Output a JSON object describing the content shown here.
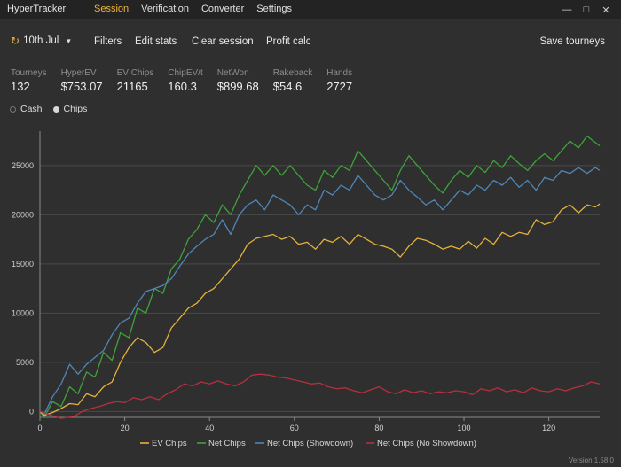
{
  "app": {
    "title": "HyperTracker",
    "version": "Version 1.58.0"
  },
  "menu": [
    {
      "label": "Session",
      "active": true
    },
    {
      "label": "Verification",
      "active": false
    },
    {
      "label": "Converter",
      "active": false
    },
    {
      "label": "Settings",
      "active": false
    }
  ],
  "toolbar": {
    "date": "10th Jul",
    "filters": "Filters",
    "edit_stats": "Edit stats",
    "clear_session": "Clear session",
    "profit_calc": "Profit calc",
    "save_tourneys": "Save tourneys"
  },
  "stats": [
    {
      "label": "Tourneys",
      "value": "132"
    },
    {
      "label": "HyperEV",
      "value": "$753.07"
    },
    {
      "label": "EV Chips",
      "value": "21165"
    },
    {
      "label": "ChipEV/t",
      "value": "160.3"
    },
    {
      "label": "NetWon",
      "value": "$899.68"
    },
    {
      "label": "Rakeback",
      "value": "$54.6"
    },
    {
      "label": "Hands",
      "value": "2727"
    }
  ],
  "mode": {
    "cash": "Cash",
    "chips": "Chips",
    "selected": "chips"
  },
  "chart_data": {
    "type": "line",
    "title": "",
    "xlabel": "",
    "ylabel": "",
    "xlim": [
      0,
      132
    ],
    "ylim": [
      -600,
      28500
    ],
    "xticks": [
      0,
      20,
      40,
      60,
      80,
      100,
      120
    ],
    "yticks": [
      0,
      5000,
      10000,
      15000,
      20000,
      25000
    ],
    "grid": "horizontal",
    "legend": "bottom",
    "series": [
      {
        "name": "Net Chips",
        "color": "#3fa23a",
        "points": [
          [
            0,
            0
          ],
          [
            1,
            -600
          ],
          [
            3,
            1000
          ],
          [
            5,
            500
          ],
          [
            7,
            2500
          ],
          [
            9,
            1800
          ],
          [
            11,
            4000
          ],
          [
            13,
            3500
          ],
          [
            15,
            6000
          ],
          [
            17,
            5200
          ],
          [
            19,
            8000
          ],
          [
            21,
            7500
          ],
          [
            23,
            10500
          ],
          [
            25,
            10000
          ],
          [
            27,
            12500
          ],
          [
            29,
            12000
          ],
          [
            31,
            14500
          ],
          [
            33,
            15500
          ],
          [
            35,
            17500
          ],
          [
            37,
            18500
          ],
          [
            39,
            20000
          ],
          [
            41,
            19200
          ],
          [
            43,
            21000
          ],
          [
            45,
            20000
          ],
          [
            47,
            22000
          ],
          [
            49,
            23500
          ],
          [
            51,
            25000
          ],
          [
            53,
            24000
          ],
          [
            55,
            25000
          ],
          [
            57,
            24000
          ],
          [
            59,
            25000
          ],
          [
            61,
            24000
          ],
          [
            63,
            23000
          ],
          [
            65,
            22500
          ],
          [
            67,
            24500
          ],
          [
            69,
            23800
          ],
          [
            71,
            25000
          ],
          [
            73,
            24500
          ],
          [
            75,
            26500
          ],
          [
            77,
            25500
          ],
          [
            79,
            24500
          ],
          [
            81,
            23500
          ],
          [
            83,
            22500
          ],
          [
            85,
            24500
          ],
          [
            87,
            26000
          ],
          [
            89,
            25000
          ],
          [
            91,
            24000
          ],
          [
            93,
            23000
          ],
          [
            95,
            22200
          ],
          [
            97,
            23500
          ],
          [
            99,
            24500
          ],
          [
            101,
            23800
          ],
          [
            103,
            25000
          ],
          [
            105,
            24300
          ],
          [
            107,
            25500
          ],
          [
            109,
            24800
          ],
          [
            111,
            26000
          ],
          [
            113,
            25200
          ],
          [
            115,
            24500
          ],
          [
            117,
            25500
          ],
          [
            119,
            26200
          ],
          [
            121,
            25500
          ],
          [
            123,
            26500
          ],
          [
            125,
            27500
          ],
          [
            127,
            26800
          ],
          [
            129,
            28000
          ],
          [
            132,
            27000
          ]
        ]
      },
      {
        "name": "Net Chips (Showdown)",
        "color": "#4f86b7",
        "points": [
          [
            0,
            0
          ],
          [
            1,
            -300
          ],
          [
            3,
            1500
          ],
          [
            5,
            2800
          ],
          [
            7,
            4800
          ],
          [
            9,
            3800
          ],
          [
            11,
            4800
          ],
          [
            13,
            5500
          ],
          [
            15,
            6200
          ],
          [
            17,
            7800
          ],
          [
            19,
            9000
          ],
          [
            21,
            9500
          ],
          [
            23,
            11000
          ],
          [
            25,
            12200
          ],
          [
            27,
            12500
          ],
          [
            29,
            12800
          ],
          [
            31,
            13500
          ],
          [
            33,
            14800
          ],
          [
            35,
            16000
          ],
          [
            37,
            16800
          ],
          [
            39,
            17500
          ],
          [
            41,
            18000
          ],
          [
            43,
            19500
          ],
          [
            45,
            18000
          ],
          [
            47,
            20000
          ],
          [
            49,
            21000
          ],
          [
            51,
            21500
          ],
          [
            53,
            20500
          ],
          [
            55,
            22000
          ],
          [
            57,
            21500
          ],
          [
            59,
            21000
          ],
          [
            61,
            20000
          ],
          [
            63,
            21000
          ],
          [
            65,
            20500
          ],
          [
            67,
            22500
          ],
          [
            69,
            22000
          ],
          [
            71,
            23000
          ],
          [
            73,
            22500
          ],
          [
            75,
            24000
          ],
          [
            77,
            23000
          ],
          [
            79,
            22000
          ],
          [
            81,
            21500
          ],
          [
            83,
            22000
          ],
          [
            85,
            23500
          ],
          [
            87,
            22500
          ],
          [
            89,
            21800
          ],
          [
            91,
            21000
          ],
          [
            93,
            21500
          ],
          [
            95,
            20500
          ],
          [
            97,
            21500
          ],
          [
            99,
            22500
          ],
          [
            101,
            22000
          ],
          [
            103,
            23000
          ],
          [
            105,
            22500
          ],
          [
            107,
            23500
          ],
          [
            109,
            23000
          ],
          [
            111,
            23800
          ],
          [
            113,
            22800
          ],
          [
            115,
            23500
          ],
          [
            117,
            22500
          ],
          [
            119,
            23800
          ],
          [
            121,
            23500
          ],
          [
            123,
            24500
          ],
          [
            125,
            24200
          ],
          [
            127,
            24800
          ],
          [
            129,
            24200
          ],
          [
            131,
            24800
          ],
          [
            132,
            24500
          ]
        ]
      },
      {
        "name": "EV Chips",
        "color": "#e5b13a",
        "points": [
          [
            0,
            0
          ],
          [
            1,
            -400
          ],
          [
            3,
            -100
          ],
          [
            5,
            300
          ],
          [
            7,
            800
          ],
          [
            9,
            700
          ],
          [
            11,
            1800
          ],
          [
            13,
            1500
          ],
          [
            15,
            2500
          ],
          [
            17,
            3000
          ],
          [
            19,
            5000
          ],
          [
            21,
            6500
          ],
          [
            23,
            7500
          ],
          [
            25,
            7000
          ],
          [
            27,
            6000
          ],
          [
            29,
            6500
          ],
          [
            31,
            8500
          ],
          [
            33,
            9500
          ],
          [
            35,
            10500
          ],
          [
            37,
            11000
          ],
          [
            39,
            12000
          ],
          [
            41,
            12500
          ],
          [
            43,
            13500
          ],
          [
            45,
            14500
          ],
          [
            47,
            15500
          ],
          [
            49,
            17000
          ],
          [
            51,
            17600
          ],
          [
            53,
            17800
          ],
          [
            55,
            18000
          ],
          [
            57,
            17500
          ],
          [
            59,
            17800
          ],
          [
            61,
            17000
          ],
          [
            63,
            17200
          ],
          [
            65,
            16500
          ],
          [
            67,
            17500
          ],
          [
            69,
            17200
          ],
          [
            71,
            17800
          ],
          [
            73,
            17000
          ],
          [
            75,
            18000
          ],
          [
            77,
            17500
          ],
          [
            79,
            17000
          ],
          [
            81,
            16800
          ],
          [
            83,
            16500
          ],
          [
            85,
            15700
          ],
          [
            87,
            16800
          ],
          [
            89,
            17600
          ],
          [
            91,
            17400
          ],
          [
            93,
            17000
          ],
          [
            95,
            16500
          ],
          [
            97,
            16800
          ],
          [
            99,
            16500
          ],
          [
            101,
            17300
          ],
          [
            103,
            16600
          ],
          [
            105,
            17600
          ],
          [
            107,
            17000
          ],
          [
            109,
            18200
          ],
          [
            111,
            17800
          ],
          [
            113,
            18200
          ],
          [
            115,
            18000
          ],
          [
            117,
            19500
          ],
          [
            119,
            19000
          ],
          [
            121,
            19300
          ],
          [
            123,
            20500
          ],
          [
            125,
            21000
          ],
          [
            127,
            20200
          ],
          [
            129,
            21000
          ],
          [
            131,
            20800
          ],
          [
            132,
            21100
          ]
        ]
      },
      {
        "name": "Net Chips (No Showdown)",
        "color": "#b5303e",
        "points": [
          [
            0,
            0
          ],
          [
            2,
            -300
          ],
          [
            5,
            -700
          ],
          [
            8,
            -500
          ],
          [
            10,
            0
          ],
          [
            12,
            300
          ],
          [
            14,
            500
          ],
          [
            16,
            800
          ],
          [
            18,
            1000
          ],
          [
            20,
            900
          ],
          [
            22,
            1400
          ],
          [
            24,
            1200
          ],
          [
            26,
            1500
          ],
          [
            28,
            1200
          ],
          [
            30,
            1800
          ],
          [
            32,
            2200
          ],
          [
            34,
            2800
          ],
          [
            36,
            2600
          ],
          [
            38,
            3000
          ],
          [
            40,
            2800
          ],
          [
            42,
            3100
          ],
          [
            44,
            2800
          ],
          [
            46,
            2600
          ],
          [
            48,
            3000
          ],
          [
            50,
            3700
          ],
          [
            52,
            3800
          ],
          [
            54,
            3700
          ],
          [
            56,
            3500
          ],
          [
            58,
            3400
          ],
          [
            60,
            3200
          ],
          [
            62,
            3000
          ],
          [
            64,
            2800
          ],
          [
            66,
            2900
          ],
          [
            68,
            2500
          ],
          [
            70,
            2300
          ],
          [
            72,
            2400
          ],
          [
            74,
            2100
          ],
          [
            76,
            1900
          ],
          [
            78,
            2200
          ],
          [
            80,
            2500
          ],
          [
            82,
            2000
          ],
          [
            84,
            1800
          ],
          [
            86,
            2200
          ],
          [
            88,
            1900
          ],
          [
            90,
            2100
          ],
          [
            92,
            1800
          ],
          [
            94,
            2000
          ],
          [
            96,
            1900
          ],
          [
            98,
            2100
          ],
          [
            100,
            2000
          ],
          [
            102,
            1700
          ],
          [
            104,
            2300
          ],
          [
            106,
            2100
          ],
          [
            108,
            2400
          ],
          [
            110,
            2000
          ],
          [
            112,
            2200
          ],
          [
            114,
            1900
          ],
          [
            116,
            2400
          ],
          [
            118,
            2100
          ],
          [
            120,
            2000
          ],
          [
            122,
            2300
          ],
          [
            124,
            2100
          ],
          [
            126,
            2400
          ],
          [
            128,
            2600
          ],
          [
            130,
            3000
          ],
          [
            132,
            2800
          ]
        ]
      }
    ],
    "legend_order": [
      "EV Chips",
      "Net Chips",
      "Net Chips (Showdown)",
      "Net Chips (No Showdown)"
    ]
  }
}
